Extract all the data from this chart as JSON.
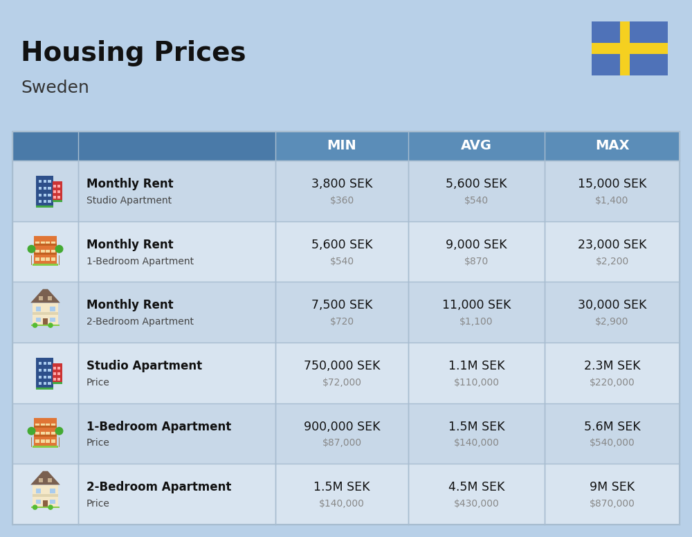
{
  "title": "Housing Prices",
  "subtitle": "Sweden",
  "bg_color": "#b8d0e8",
  "header_bg": "#5b8db8",
  "header_text_color": "#ffffff",
  "row_bg_even": "#c8d8e8",
  "row_bg_odd": "#d8e4f0",
  "divider_color": "#a8bdd0",
  "header_labels": [
    "MIN",
    "AVG",
    "MAX"
  ],
  "rows": [
    {
      "bold_label": "Monthly Rent",
      "sub_label": "Studio Apartment",
      "min_main": "3,800 SEK",
      "min_sub": "$360",
      "avg_main": "5,600 SEK",
      "avg_sub": "$540",
      "max_main": "15,000 SEK",
      "max_sub": "$1,400",
      "icon_type": "blue_studio"
    },
    {
      "bold_label": "Monthly Rent",
      "sub_label": "1-Bedroom Apartment",
      "min_main": "5,600 SEK",
      "min_sub": "$540",
      "avg_main": "9,000 SEK",
      "avg_sub": "$870",
      "max_main": "23,000 SEK",
      "max_sub": "$2,200",
      "icon_type": "orange_apt"
    },
    {
      "bold_label": "Monthly Rent",
      "sub_label": "2-Bedroom Apartment",
      "min_main": "7,500 SEK",
      "min_sub": "$720",
      "avg_main": "11,000 SEK",
      "avg_sub": "$1,100",
      "max_main": "30,000 SEK",
      "max_sub": "$2,900",
      "icon_type": "beige_house"
    },
    {
      "bold_label": "Studio Apartment",
      "sub_label": "Price",
      "min_main": "750,000 SEK",
      "min_sub": "$72,000",
      "avg_main": "1.1M SEK",
      "avg_sub": "$110,000",
      "max_main": "2.3M SEK",
      "max_sub": "$220,000",
      "icon_type": "blue_studio"
    },
    {
      "bold_label": "1-Bedroom Apartment",
      "sub_label": "Price",
      "min_main": "900,000 SEK",
      "min_sub": "$87,000",
      "avg_main": "1.5M SEK",
      "avg_sub": "$140,000",
      "max_main": "5.6M SEK",
      "max_sub": "$540,000",
      "icon_type": "orange_apt"
    },
    {
      "bold_label": "2-Bedroom Apartment",
      "sub_label": "Price",
      "min_main": "1.5M SEK",
      "min_sub": "$140,000",
      "avg_main": "4.5M SEK",
      "avg_sub": "$430,000",
      "max_main": "9M SEK",
      "max_sub": "$870,000",
      "icon_type": "beige_house"
    }
  ],
  "flag_blue": "#4f72b8",
  "flag_yellow": "#f5d020"
}
